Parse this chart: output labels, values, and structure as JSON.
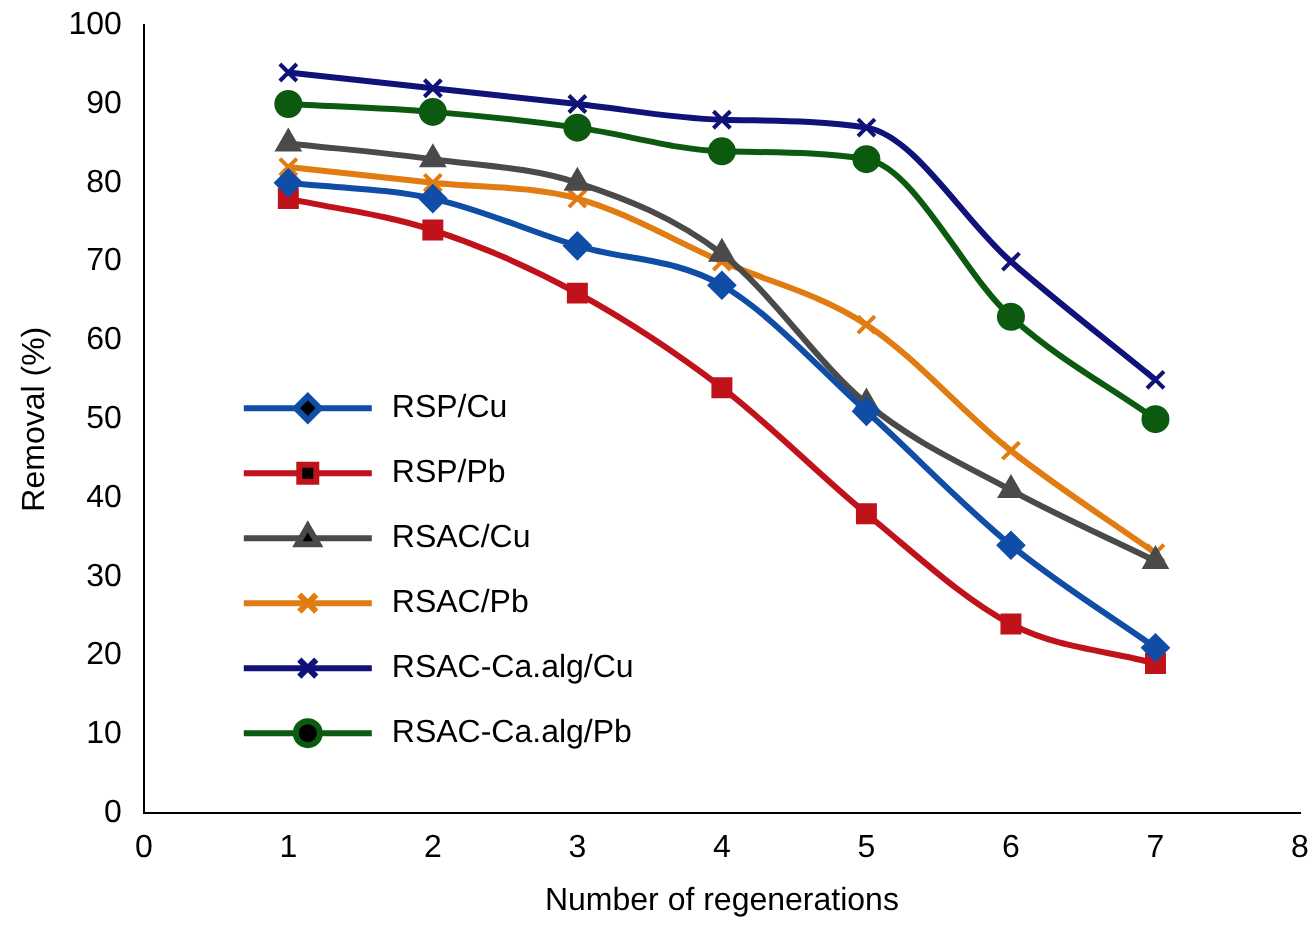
{
  "chart_data": {
    "type": "line",
    "xlabel": "Number of regenerations",
    "ylabel": "Removal (%)",
    "x": [
      1,
      2,
      3,
      4,
      5,
      6,
      7
    ],
    "xlim": [
      0,
      8
    ],
    "xticks": [
      0,
      1,
      2,
      3,
      4,
      5,
      6,
      7,
      8
    ],
    "ylim": [
      0,
      100
    ],
    "yticks": [
      0,
      10,
      20,
      30,
      40,
      50,
      60,
      70,
      80,
      90,
      100
    ],
    "grid": false,
    "legend": "lower left",
    "series": [
      {
        "name": "RSP/Cu",
        "color": "#0f4da6",
        "marker": "diamond",
        "values": [
          80,
          78,
          72,
          67,
          51,
          34,
          21
        ]
      },
      {
        "name": "RSP/Pb",
        "color": "#c0121a",
        "marker": "square",
        "values": [
          78,
          74,
          66,
          54,
          38,
          24,
          19
        ]
      },
      {
        "name": "RSAC/Cu",
        "color": "#4a4a4a",
        "marker": "triangle",
        "values": [
          85,
          83,
          80,
          71,
          52,
          41,
          32
        ]
      },
      {
        "name": "RSAC/Pb",
        "color": "#e07c12",
        "marker": "cross",
        "values": [
          82,
          80,
          78,
          70,
          62,
          46,
          33
        ]
      },
      {
        "name": "RSAC-Ca.alg/Cu",
        "color": "#10127a",
        "marker": "cross",
        "values": [
          94,
          92,
          90,
          88,
          87,
          70,
          55
        ]
      },
      {
        "name": "RSAC-Ca.alg/Pb",
        "color": "#0c5a10",
        "marker": "circle",
        "values": [
          90,
          89,
          87,
          84,
          83,
          63,
          50
        ]
      }
    ]
  }
}
